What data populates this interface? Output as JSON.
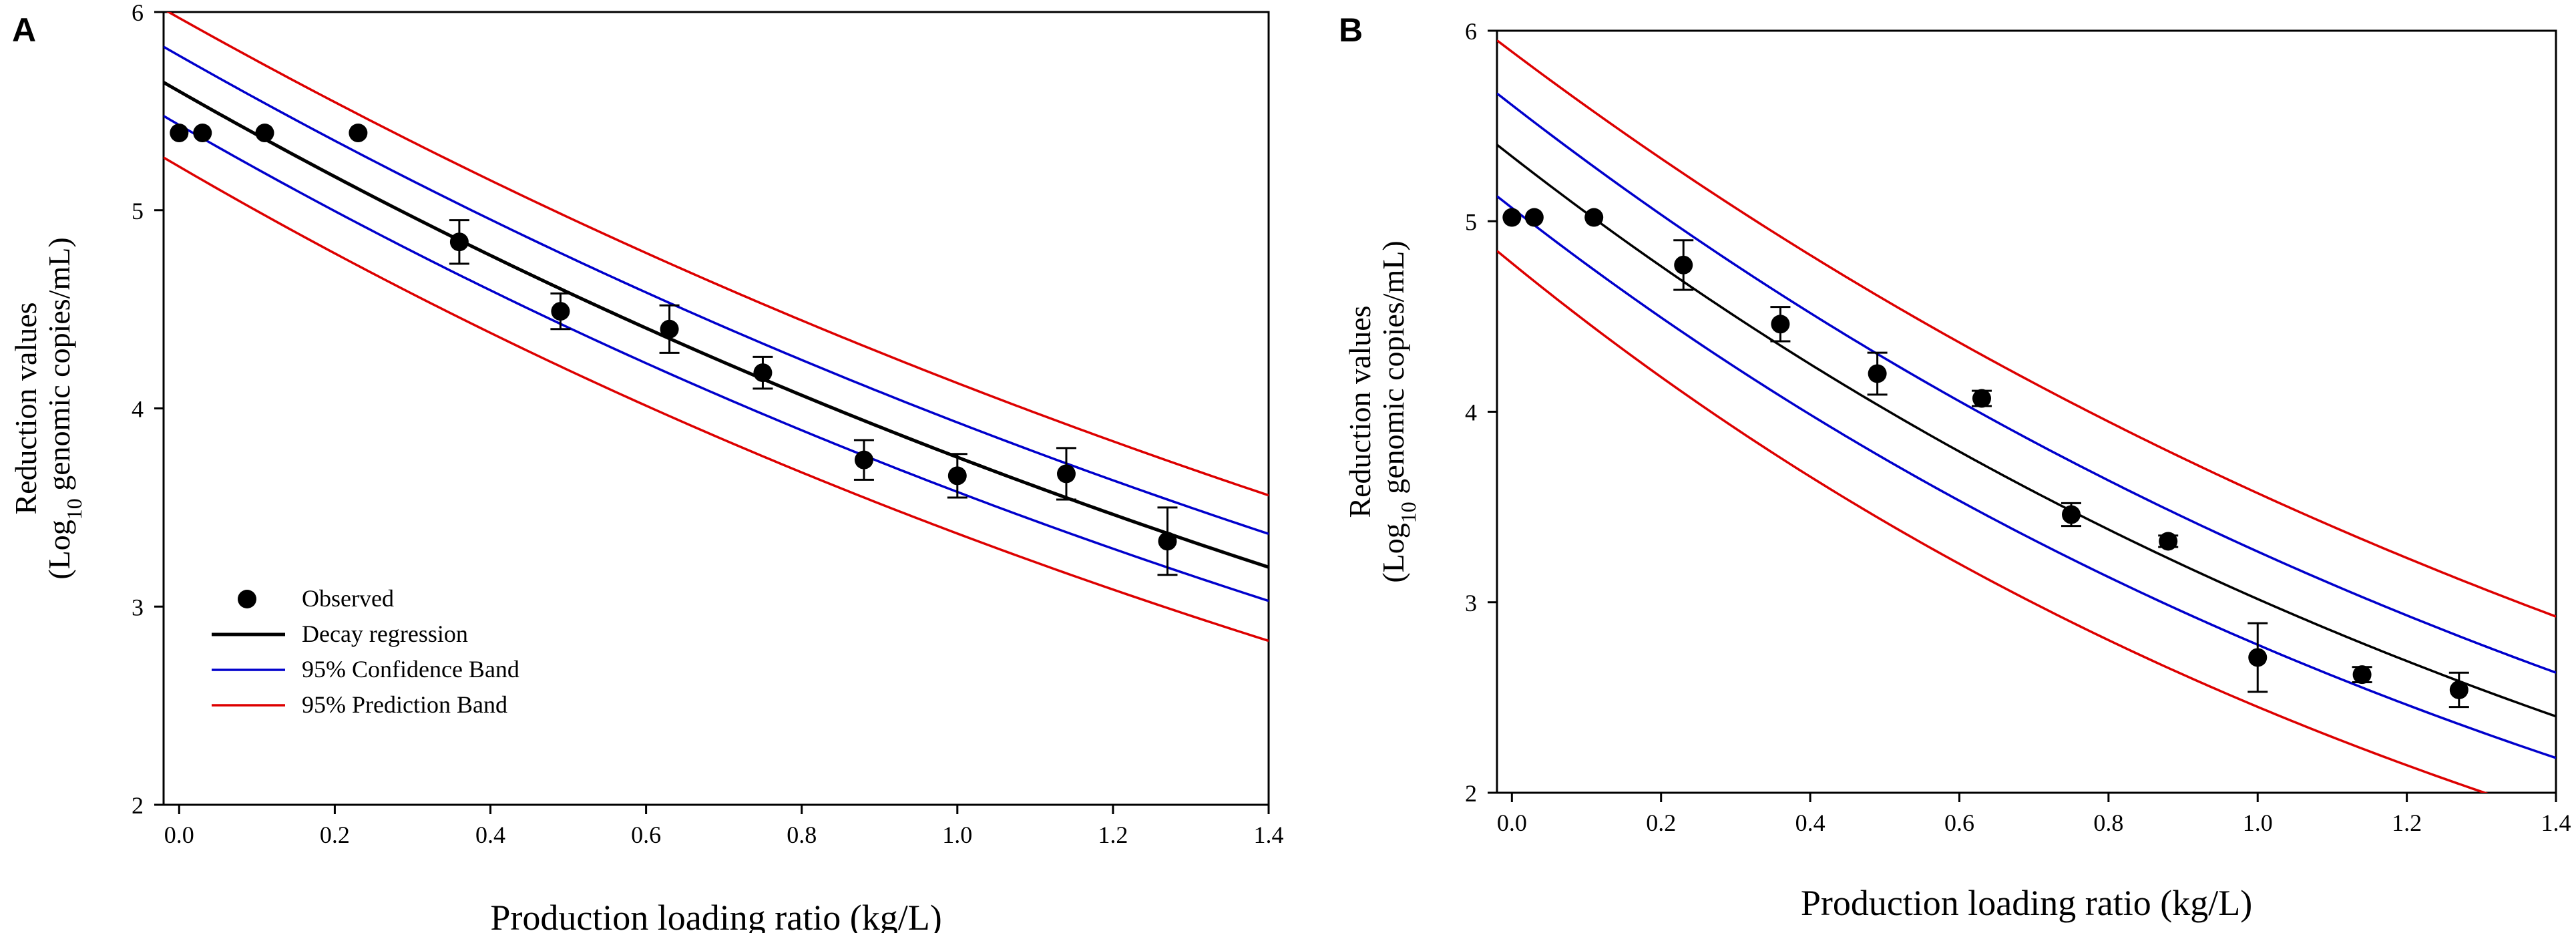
{
  "chart_data": [
    {
      "type": "scatter",
      "panel_label": "A",
      "xlabel": "Production loading ratio (kg/L)",
      "ylabel_line1": "Reduction values",
      "ylabel_line2_prefix": "(Log",
      "ylabel_line2_sub": "10",
      "ylabel_line2_suffix": " genomic copies/mL)",
      "xlim": [
        -0.02,
        1.4
      ],
      "ylim": [
        2,
        6
      ],
      "xticks": [
        0.0,
        0.2,
        0.4,
        0.6,
        0.8,
        1.0,
        1.2,
        1.4
      ],
      "xtick_labels": [
        "0.0",
        "0.2",
        "0.4",
        "0.6",
        "0.8",
        "1.0",
        "1.2",
        "1.4"
      ],
      "yticks": [
        2,
        3,
        4,
        5,
        6
      ],
      "ytick_labels": [
        "2",
        "3",
        "4",
        "5",
        "6"
      ],
      "legend_position": "bottom-left",
      "legend": [
        {
          "key": "observed",
          "label": "Observed"
        },
        {
          "key": "regression",
          "label": "Decay regression"
        },
        {
          "key": "confidence",
          "label": "95% Confidence Band"
        },
        {
          "key": "prediction",
          "label": "95% Prediction Band"
        }
      ],
      "observed": {
        "x": [
          0.0,
          0.03,
          0.11,
          0.23,
          0.36,
          0.49,
          0.63,
          0.75,
          0.88,
          1.0,
          1.14,
          1.27
        ],
        "y": [
          5.39,
          5.39,
          5.39,
          5.39,
          4.84,
          4.49,
          4.4,
          4.18,
          3.74,
          3.66,
          3.67,
          3.33
        ],
        "err": [
          0,
          0,
          0,
          0,
          0.11,
          0.09,
          0.12,
          0.08,
          0.1,
          0.11,
          0.13,
          0.17
        ]
      },
      "regression": {
        "a": 5.6,
        "b": 0.4
      },
      "confidence": {
        "upper": {
          "a": 5.78,
          "b": 0.386
        },
        "lower": {
          "a": 5.43,
          "b": 0.417
        }
      },
      "prediction": {
        "upper": {
          "a": 5.97,
          "b": 0.369
        },
        "lower": {
          "a": 5.22,
          "b": 0.438
        }
      },
      "colors": {
        "observed": "#000000",
        "regression": "#000000",
        "confidence": "#0000cc",
        "prediction": "#dd0000"
      }
    },
    {
      "type": "scatter",
      "panel_label": "B",
      "xlabel": "Production loading ratio (kg/L)",
      "ylabel_line1": "Reduction values",
      "ylabel_line2_prefix": "(Log",
      "ylabel_line2_sub": "10",
      "ylabel_line2_suffix": " genomic copies/mL)",
      "xlim": [
        -0.02,
        1.4
      ],
      "ylim": [
        2,
        6
      ],
      "xticks": [
        0.0,
        0.2,
        0.4,
        0.6,
        0.8,
        1.0,
        1.2,
        1.4
      ],
      "xtick_labels": [
        "0.0",
        "0.2",
        "0.4",
        "0.6",
        "0.8",
        "1.0",
        "1.2",
        "1.4"
      ],
      "yticks": [
        2,
        3,
        4,
        5,
        6
      ],
      "ytick_labels": [
        "2",
        "3",
        "4",
        "5",
        "6"
      ],
      "legend_position": "none",
      "legend": [],
      "observed": {
        "x": [
          0.0,
          0.03,
          0.11,
          0.23,
          0.36,
          0.49,
          0.63,
          0.75,
          0.88,
          1.0,
          1.14,
          1.27
        ],
        "y": [
          5.02,
          5.02,
          5.02,
          4.77,
          4.46,
          4.2,
          4.07,
          3.46,
          3.32,
          2.71,
          2.62,
          2.54
        ],
        "err": [
          0,
          0,
          0,
          0.13,
          0.09,
          0.11,
          0.04,
          0.06,
          0.03,
          0.18,
          0.04,
          0.09
        ]
      },
      "regression": {
        "a": 5.34,
        "b": 0.571
      },
      "confidence": {
        "upper": {
          "a": 5.61,
          "b": 0.541
        },
        "lower": {
          "a": 5.07,
          "b": 0.602
        }
      },
      "prediction": {
        "upper": {
          "a": 5.89,
          "b": 0.5
        },
        "lower": {
          "a": 4.78,
          "b": 0.668
        }
      },
      "colors": {
        "observed": "#000000",
        "regression": "#000000",
        "confidence": "#0000cc",
        "prediction": "#dd0000"
      }
    }
  ]
}
